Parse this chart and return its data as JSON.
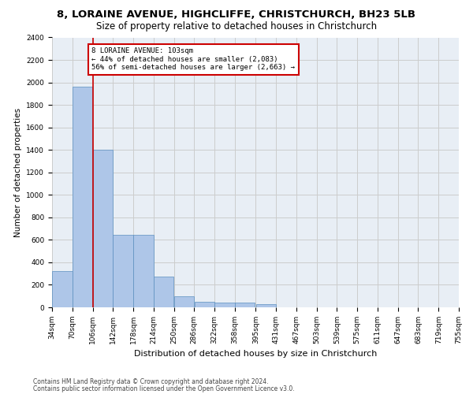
{
  "title1": "8, LORAINE AVENUE, HIGHCLIFFE, CHRISTCHURCH, BH23 5LB",
  "title2": "Size of property relative to detached houses in Christchurch",
  "xlabel": "Distribution of detached houses by size in Christchurch",
  "ylabel": "Number of detached properties",
  "footnote1": "Contains HM Land Registry data © Crown copyright and database right 2024.",
  "footnote2": "Contains public sector information licensed under the Open Government Licence v3.0.",
  "annotation_title": "8 LORAINE AVENUE: 103sqm",
  "annotation_line1": "← 44% of detached houses are smaller (2,083)",
  "annotation_line2": "56% of semi-detached houses are larger (2,663) →",
  "bin_edges": [
    34,
    70,
    106,
    142,
    178,
    214,
    250,
    286,
    322,
    358,
    395,
    431,
    467,
    503,
    539,
    575,
    611,
    647,
    683,
    719,
    755
  ],
  "bar_heights": [
    325,
    1960,
    1400,
    645,
    645,
    275,
    100,
    50,
    42,
    42,
    25,
    0,
    0,
    0,
    0,
    0,
    0,
    0,
    0,
    0
  ],
  "bar_color": "#aec6e8",
  "bar_edge_color": "#5a8fc0",
  "vline_color": "#cc0000",
  "vline_x": 106,
  "box_color": "#cc0000",
  "ylim": [
    0,
    2400
  ],
  "yticks": [
    0,
    200,
    400,
    600,
    800,
    1000,
    1200,
    1400,
    1600,
    1800,
    2000,
    2200,
    2400
  ],
  "grid_color": "#cccccc",
  "bg_color": "#e8eef5",
  "title1_fontsize": 9.5,
  "title2_fontsize": 8.5,
  "ylabel_fontsize": 7.5,
  "xlabel_fontsize": 8,
  "tick_fontsize": 6.5,
  "annotation_fontsize": 6.5,
  "footnote_fontsize": 5.5
}
